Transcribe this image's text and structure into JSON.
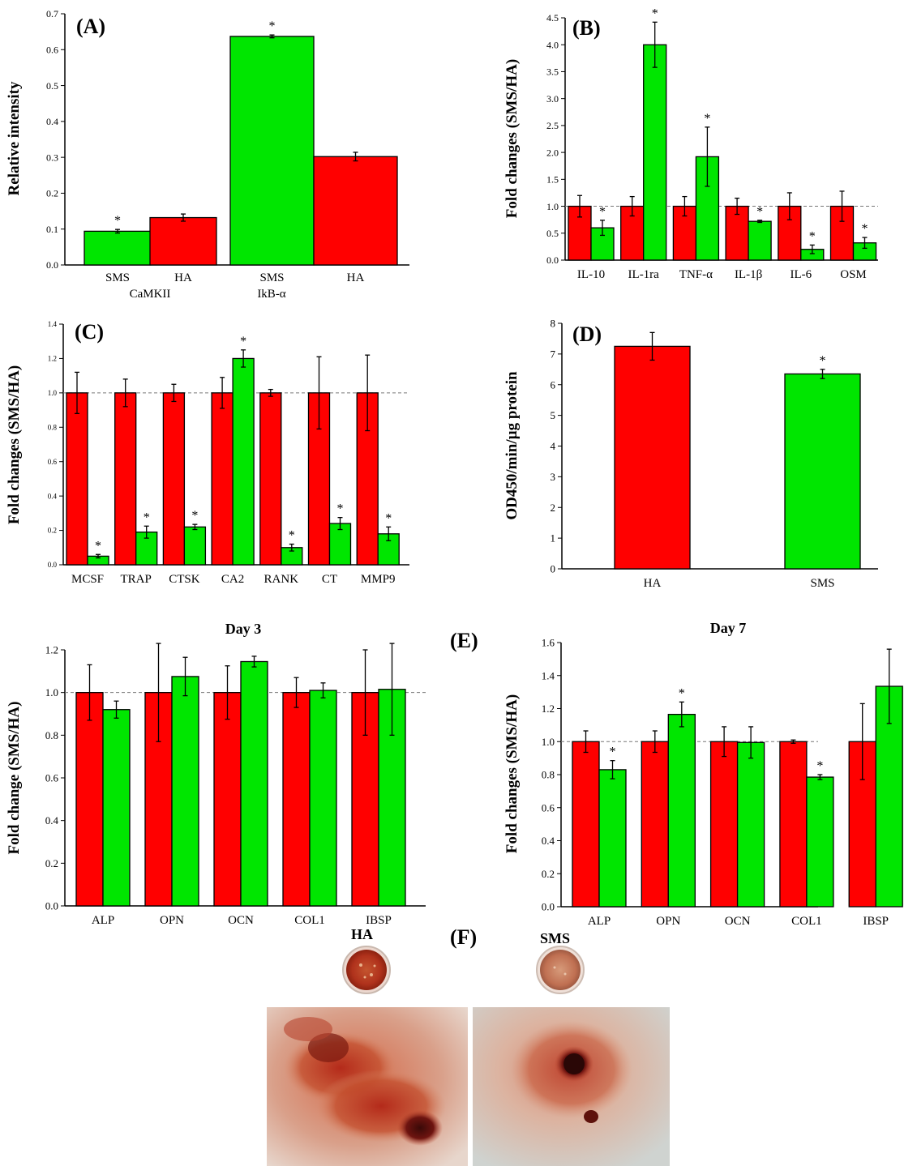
{
  "colors": {
    "HA": "#ff0000",
    "SMS": "#00e600",
    "axis": "#000000",
    "refline": "#777777"
  },
  "panels": {
    "A": {
      "label": "(A)"
    },
    "B": {
      "label": "(B)"
    },
    "C": {
      "label": "(C)"
    },
    "D": {
      "label": "(D)"
    },
    "E": {
      "label": "(E)"
    },
    "F": {
      "label": "(F)",
      "HA_label": "HA",
      "SMS_label": "SMS"
    }
  },
  "chart_data": [
    {
      "id": "A",
      "type": "bar",
      "title": "",
      "ylabel": "Relative intensity",
      "ylim": [
        0,
        0.7
      ],
      "yticks": [
        "0.0",
        "0.1",
        "0.2",
        "0.3",
        "0.4",
        "0.5",
        "0.6",
        "0.7"
      ],
      "groups": [
        {
          "name": "CaMKII",
          "bars": [
            {
              "label": "SMS",
              "series": "SMS",
              "value": 0.094,
              "err": 0.005,
              "sig": true
            },
            {
              "label": "HA",
              "series": "HA",
              "value": 0.132,
              "err": 0.01,
              "sig": false
            }
          ]
        },
        {
          "name": "IkB-α",
          "bars": [
            {
              "label": "SMS",
              "series": "SMS",
              "value": 0.637,
              "err": 0.004,
              "sig": true
            },
            {
              "label": "HA",
              "series": "HA",
              "value": 0.302,
              "err": 0.012,
              "sig": false
            }
          ]
        }
      ]
    },
    {
      "id": "B",
      "type": "bar",
      "title": "",
      "ylabel": "Fold changes (SMS/HA)",
      "ylim": [
        0,
        4.5
      ],
      "refline": 1.0,
      "yticks": [
        "0.0",
        "0.5",
        "1.0",
        "1.5",
        "2.0",
        "2.5",
        "3.0",
        "3.5",
        "4.0",
        "4.5"
      ],
      "categories": [
        "IL-10",
        "IL-1ra",
        "TNF-α",
        "IL-1β",
        "IL-6",
        "OSM"
      ],
      "series": [
        {
          "name": "HA",
          "values": [
            1.0,
            1.0,
            1.0,
            1.0,
            1.0,
            1.0
          ],
          "errs": [
            0.2,
            0.18,
            0.18,
            0.15,
            0.25,
            0.28
          ],
          "sig": [
            false,
            false,
            false,
            false,
            false,
            false
          ]
        },
        {
          "name": "SMS",
          "values": [
            0.6,
            4.0,
            1.92,
            0.72,
            0.2,
            0.32
          ],
          "errs": [
            0.14,
            0.42,
            0.55,
            0.02,
            0.08,
            0.1
          ],
          "sig": [
            true,
            true,
            true,
            true,
            true,
            true
          ]
        }
      ]
    },
    {
      "id": "C",
      "type": "bar",
      "title": "",
      "ylabel": "Fold changes (SMS/HA)",
      "ylim": [
        0,
        1.4
      ],
      "refline": 1.0,
      "yticks": [
        "0.0",
        "0.2",
        "0.4",
        "0.6",
        "0.8",
        "1.0",
        "1.2",
        "1.4"
      ],
      "categories": [
        "MCSF",
        "TRAP",
        "CTSK",
        "CA2",
        "RANK",
        "CT",
        "MMP9"
      ],
      "series": [
        {
          "name": "HA",
          "values": [
            1.0,
            1.0,
            1.0,
            1.0,
            1.0,
            1.0,
            1.0
          ],
          "errs": [
            0.12,
            0.08,
            0.05,
            0.09,
            0.02,
            0.21,
            0.22
          ],
          "sig": [
            false,
            false,
            false,
            false,
            false,
            false,
            false
          ]
        },
        {
          "name": "SMS",
          "values": [
            0.05,
            0.19,
            0.22,
            1.2,
            0.1,
            0.24,
            0.18
          ],
          "errs": [
            0.01,
            0.035,
            0.015,
            0.05,
            0.02,
            0.035,
            0.04
          ],
          "sig": [
            true,
            true,
            true,
            true,
            true,
            true,
            true
          ]
        }
      ]
    },
    {
      "id": "D",
      "type": "bar",
      "title": "",
      "ylabel": "OD450/min/µg protein",
      "ylim": [
        0,
        8
      ],
      "yticks": [
        "0",
        "1",
        "2",
        "3",
        "4",
        "5",
        "6",
        "7",
        "8"
      ],
      "categories": [
        "HA",
        "SMS"
      ],
      "values": [
        7.25,
        6.35
      ],
      "errs": [
        0.45,
        0.15
      ],
      "sig": [
        false,
        true
      ],
      "bar_series": [
        "HA",
        "SMS"
      ]
    },
    {
      "id": "E1",
      "type": "bar",
      "title": "Day 3",
      "ylabel": "Fold change (SMS/HA)",
      "ylim": [
        0,
        1.2
      ],
      "refline": 1.0,
      "yticks": [
        "0.0",
        "0.2",
        "0.4",
        "0.6",
        "0.8",
        "1.0",
        "1.2"
      ],
      "categories": [
        "ALP",
        "OPN",
        "OCN",
        "COL1",
        "IBSP"
      ],
      "series": [
        {
          "name": "HA",
          "values": [
            1.0,
            1.0,
            1.0,
            1.0,
            1.0
          ],
          "errs": [
            0.13,
            0.23,
            0.125,
            0.07,
            0.2
          ],
          "sig": [
            false,
            false,
            false,
            false,
            false
          ]
        },
        {
          "name": "SMS",
          "values": [
            0.92,
            1.075,
            1.145,
            1.01,
            1.015
          ],
          "errs": [
            0.04,
            0.09,
            0.025,
            0.035,
            0.215
          ],
          "sig": [
            false,
            false,
            false,
            false,
            false
          ]
        }
      ]
    },
    {
      "id": "E2",
      "type": "bar",
      "title": "Day 7",
      "ylabel": "Fold changes (SMS/HA)",
      "ylim": [
        0,
        1.6
      ],
      "refline": 1.0,
      "yticks": [
        "0.0",
        "0.2",
        "0.4",
        "0.6",
        "0.8",
        "1.0",
        "1.2",
        "1.4",
        "1.6"
      ],
      "categories": [
        "ALP",
        "OPN",
        "OCN",
        "COL1",
        "IBSP"
      ],
      "series": [
        {
          "name": "HA",
          "values": [
            1.0,
            1.0,
            1.0,
            1.0,
            1.0
          ],
          "errs": [
            0.065,
            0.065,
            0.09,
            0.01,
            0.23
          ],
          "sig": [
            false,
            false,
            false,
            false,
            false
          ]
        },
        {
          "name": "SMS",
          "values": [
            0.83,
            1.165,
            0.995,
            0.785,
            1.335
          ],
          "errs": [
            0.055,
            0.075,
            0.095,
            0.015,
            0.225
          ],
          "sig": [
            true,
            true,
            false,
            true,
            false
          ]
        }
      ]
    }
  ]
}
